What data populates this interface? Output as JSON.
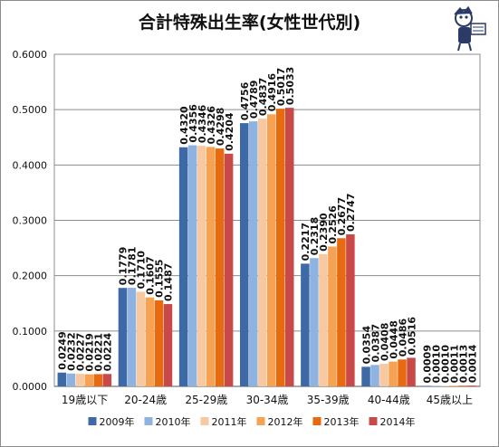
{
  "chart_data": {
    "type": "bar",
    "title": "合計特殊出生率(女性世代別)",
    "categories": [
      "19歳以下",
      "20-24歳",
      "25-29歳",
      "30-34歳",
      "35-39歳",
      "40-44歳",
      "45歳以上"
    ],
    "series": [
      {
        "name": "2009年",
        "color": "#3d6aa6",
        "values": [
          "0.0249",
          "0.1779",
          "0.4320",
          "0.4756",
          "0.2217",
          "0.0354",
          "0.0009"
        ]
      },
      {
        "name": "2010年",
        "color": "#8fb3e0",
        "values": [
          "0.0232",
          "0.1781",
          "0.4356",
          "0.4789",
          "0.2318",
          "0.0387",
          "0.0010"
        ]
      },
      {
        "name": "2011年",
        "color": "#f8c9a0",
        "values": [
          "0.0227",
          "0.1710",
          "0.4346",
          "0.4837",
          "0.2390",
          "0.0408",
          "0.0010"
        ]
      },
      {
        "name": "2012年",
        "color": "#f6a252",
        "values": [
          "0.0219",
          "0.1607",
          "0.4326",
          "0.4916",
          "0.2526",
          "0.0448",
          "0.0011"
        ]
      },
      {
        "name": "2013年",
        "color": "#e86a10",
        "values": [
          "0.0221",
          "0.1555",
          "0.4298",
          "0.5017",
          "0.2677",
          "0.0486",
          "0.0013"
        ]
      },
      {
        "name": "2014年",
        "color": "#c94848",
        "values": [
          "0.0224",
          "0.1487",
          "0.4204",
          "0.5033",
          "0.2747",
          "0.0516",
          "0.0014"
        ]
      }
    ],
    "y_ticks": [
      "0.0000",
      "0.1000",
      "0.2000",
      "0.3000",
      "0.4000",
      "0.5000",
      "0.6000"
    ],
    "ylim": [
      0,
      0.6
    ],
    "grid": true,
    "legend_position": "bottom"
  },
  "mascot": {
    "icon": "mascot-icon"
  }
}
